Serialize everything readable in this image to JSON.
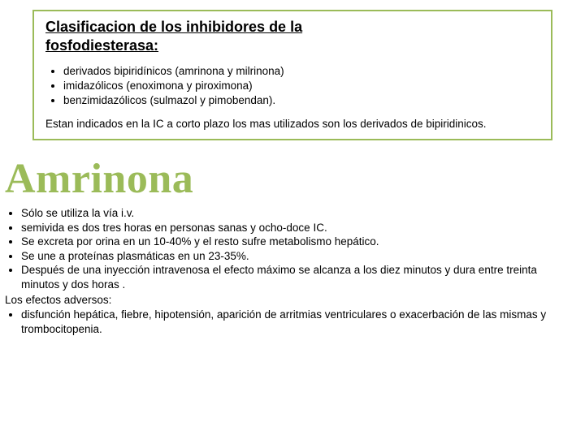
{
  "box": {
    "title_line1": "Clasificacion de los inhibidores de la",
    "title_line2": "fosfodiesterasa:",
    "items": [
      " derivados bipiridínicos (amrinona y milrinona)",
      "imidazólicos (enoximona y piroximona)",
      "benzimidazólicos (sulmazol y pimobendan)."
    ],
    "para": "Estan indicados en la IC a corto plazo los mas utilizados son los derivados de bipiridinicos."
  },
  "heading": "Amrinona",
  "bullets": [
    "Sólo se utiliza la vía i.v.",
    " semivida es dos tres horas en personas sanas y ocho-doce IC.",
    " Se excreta por orina en un 10-40% y el resto sufre metabolismo hepático.",
    "Se une a proteínas plasmáticas en un 23-35%.",
    " Después de una inyección intravenosa el efecto máximo se alcanza a los diez minutos y dura entre treinta minutos y dos horas ."
  ],
  "adverse_label": "Los efectos adversos:",
  "adverse_items": [
    "disfunción hepática, fiebre, hipotensión, aparición de arritmias ventriculares o exacerbación de las mismas y trombocitopenia."
  ],
  "colors": {
    "accent": "#9bbb59",
    "text": "#000000",
    "background": "#ffffff"
  },
  "typography": {
    "body_font": "Verdana",
    "heading_font": "Georgia",
    "body_size_pt": 10,
    "box_title_size_pt": 14,
    "heading_size_pt": 39
  }
}
